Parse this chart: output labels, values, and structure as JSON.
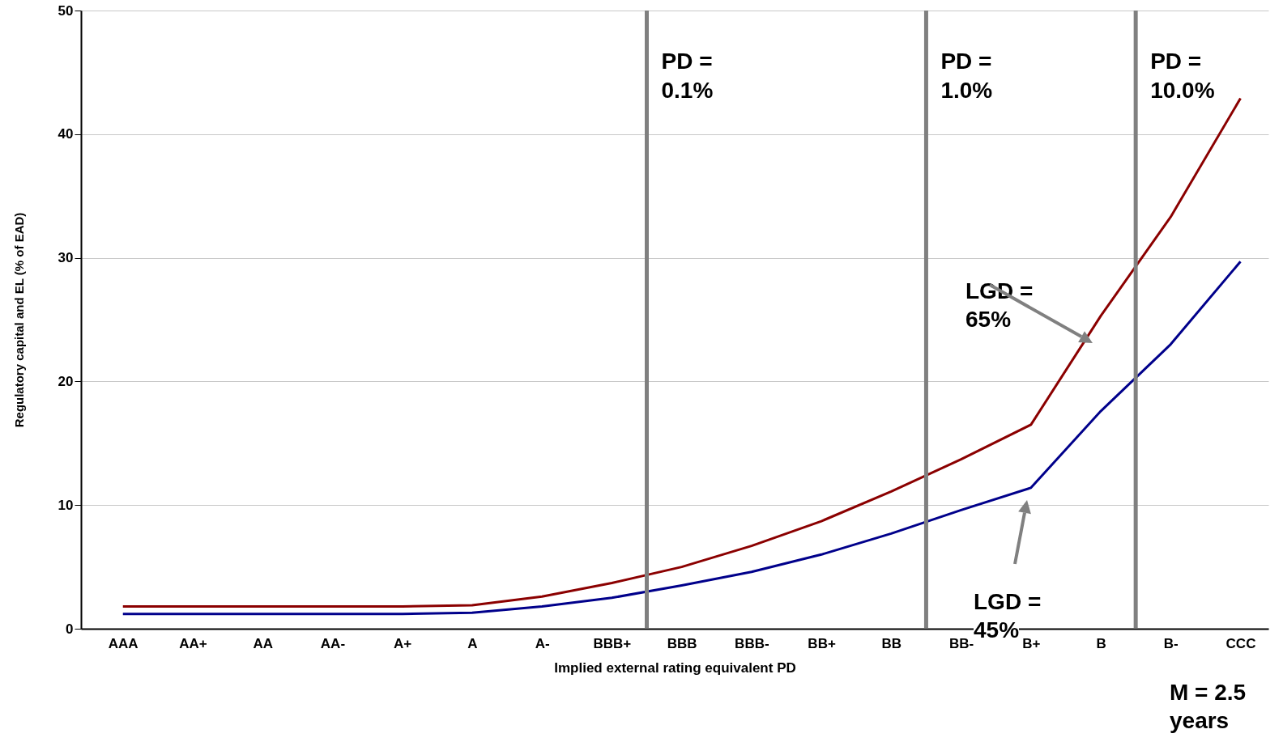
{
  "chart_data": {
    "type": "line",
    "xlabel": "Implied external rating equivalent PD",
    "ylabel": "Regulatory capital and EL (% of EAD)",
    "categories": [
      "AAA",
      "AA+",
      "AA",
      "AA-",
      "A+",
      "A",
      "A-",
      "BBB+",
      "BBB",
      "BBB-",
      "BB+",
      "BB",
      "BB-",
      "B+",
      "B",
      "B-",
      "CCC"
    ],
    "series": [
      {
        "color": "#8b0000",
        "values": [
          1.8,
          1.8,
          1.8,
          1.8,
          1.8,
          1.9,
          2.6,
          3.7,
          5.0,
          6.7,
          8.7,
          11.1,
          13.7,
          16.5,
          25.3,
          33.3,
          42.9
        ]
      },
      {
        "color": "#00008b",
        "values": [
          1.2,
          1.2,
          1.2,
          1.2,
          1.2,
          1.3,
          1.8,
          2.5,
          3.5,
          4.6,
          6.0,
          7.7,
          9.6,
          11.4,
          17.6,
          23.0,
          29.7
        ]
      }
    ],
    "ylim": [
      0,
      50
    ],
    "yticks": [
      0,
      10,
      20,
      30,
      40,
      50
    ],
    "grid": "y",
    "marker": "none",
    "line_style": "solid",
    "annotations": [
      "PD = 0.1%",
      "PD = 1.0%",
      "PD = 10.0%",
      "LGD = 65%",
      "LGD = 45%",
      "M = 2.5 years"
    ]
  }
}
